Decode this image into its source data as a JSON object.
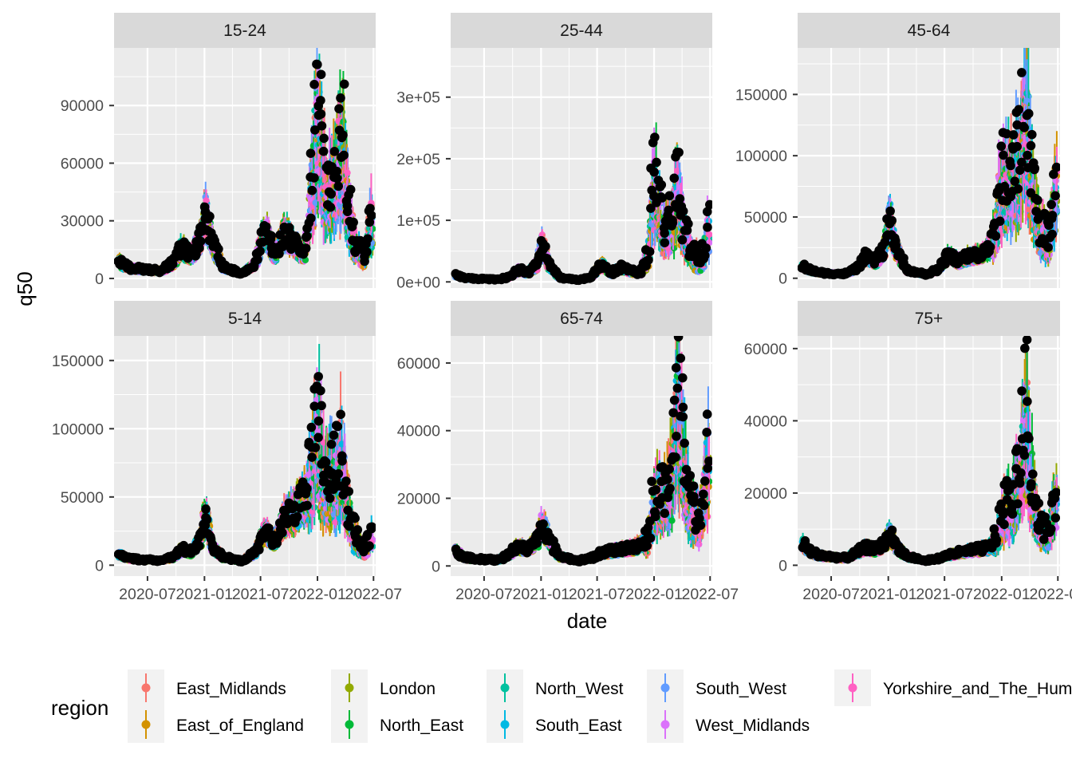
{
  "chart_data": {
    "type": "scatter",
    "layout": "faceted 2x3, free y scales, points with vertical error bars",
    "xlabel": "date",
    "ylabel": "q50",
    "x_ticks": [
      "2020-07",
      "2021-01",
      "2021-07",
      "2022-01",
      "2022-07"
    ],
    "x_range": [
      "2020-03",
      "2022-07"
    ],
    "legend": {
      "title": "region",
      "position": "bottom",
      "items": [
        {
          "name": "East_Midlands",
          "color": "#F8766D"
        },
        {
          "name": "East_of_England",
          "color": "#D39200"
        },
        {
          "name": "London",
          "color": "#93AA00"
        },
        {
          "name": "North_East",
          "color": "#00BA38"
        },
        {
          "name": "North_West",
          "color": "#00C19F"
        },
        {
          "name": "South_East",
          "color": "#00B9E3"
        },
        {
          "name": "South_West",
          "color": "#619CFF"
        },
        {
          "name": "West_Midlands",
          "color": "#DB72FB"
        },
        {
          "name": "Yorkshire_and_The_Humber",
          "color": "#FF61C3"
        }
      ]
    },
    "overlay_series_color": "#000000",
    "panels": [
      {
        "title": "15-24",
        "y_ticks": [
          "0",
          "30000",
          "60000",
          "90000"
        ],
        "y_tick_values": [
          0,
          30000,
          60000,
          90000
        ],
        "ylim": [
          -5000,
          120000
        ],
        "profile": [
          [
            "2020-04-01",
            9000
          ],
          [
            "2020-05-01",
            5500
          ],
          [
            "2020-06-15",
            5000
          ],
          [
            "2020-08-15",
            4000
          ],
          [
            "2020-09-20",
            8000
          ],
          [
            "2020-10-20",
            16000
          ],
          [
            "2020-11-20",
            12000
          ],
          [
            "2020-12-20",
            22000
          ],
          [
            "2021-01-05",
            35000
          ],
          [
            "2021-01-25",
            20000
          ],
          [
            "2021-03-01",
            6000
          ],
          [
            "2021-05-01",
            2500
          ],
          [
            "2021-06-15",
            8000
          ],
          [
            "2021-07-15",
            27000
          ],
          [
            "2021-08-15",
            12000
          ],
          [
            "2021-09-15",
            24000
          ],
          [
            "2021-10-20",
            18000
          ],
          [
            "2021-11-20",
            12000
          ],
          [
            "2021-12-15",
            45000
          ],
          [
            "2022-01-01",
            85000
          ],
          [
            "2022-01-15",
            60000
          ],
          [
            "2022-02-01",
            40000
          ],
          [
            "2022-03-01",
            48000
          ],
          [
            "2022-03-20",
            70000
          ],
          [
            "2022-04-10",
            35000
          ],
          [
            "2022-05-01",
            18000
          ],
          [
            "2022-06-01",
            9000
          ],
          [
            "2022-06-25",
            30000
          ]
        ]
      },
      {
        "title": "25-44",
        "y_ticks": [
          "0e+00",
          "1e+05",
          "2e+05",
          "3e+05"
        ],
        "y_tick_values": [
          0,
          100000,
          200000,
          300000
        ],
        "ylim": [
          -10000,
          380000
        ],
        "profile": [
          [
            "2020-04-01",
            12000
          ],
          [
            "2020-05-01",
            6000
          ],
          [
            "2020-06-15",
            5000
          ],
          [
            "2020-08-15",
            4000
          ],
          [
            "2020-09-20",
            8000
          ],
          [
            "2020-10-20",
            20000
          ],
          [
            "2020-11-20",
            15000
          ],
          [
            "2020-12-20",
            30000
          ],
          [
            "2021-01-05",
            65000
          ],
          [
            "2021-01-25",
            30000
          ],
          [
            "2021-03-01",
            7000
          ],
          [
            "2021-05-01",
            3000
          ],
          [
            "2021-06-15",
            9000
          ],
          [
            "2021-07-15",
            30000
          ],
          [
            "2021-08-15",
            14000
          ],
          [
            "2021-09-15",
            25000
          ],
          [
            "2021-10-20",
            18000
          ],
          [
            "2021-11-20",
            15000
          ],
          [
            "2021-12-15",
            50000
          ],
          [
            "2022-01-01",
            170000
          ],
          [
            "2022-01-15",
            110000
          ],
          [
            "2022-02-01",
            75000
          ],
          [
            "2022-03-01",
            90000
          ],
          [
            "2022-03-20",
            150000
          ],
          [
            "2022-04-10",
            70000
          ],
          [
            "2022-05-01",
            45000
          ],
          [
            "2022-06-01",
            30000
          ],
          [
            "2022-06-25",
            80000
          ]
        ]
      },
      {
        "title": "45-64",
        "y_ticks": [
          "0",
          "50000",
          "100000",
          "150000"
        ],
        "y_tick_values": [
          0,
          50000,
          100000,
          150000
        ],
        "ylim": [
          -8000,
          188000
        ],
        "profile": [
          [
            "2020-04-01",
            10000
          ],
          [
            "2020-05-01",
            6000
          ],
          [
            "2020-06-15",
            4000
          ],
          [
            "2020-08-15",
            3500
          ],
          [
            "2020-09-20",
            8000
          ],
          [
            "2020-10-20",
            18000
          ],
          [
            "2020-11-20",
            14000
          ],
          [
            "2020-12-20",
            25000
          ],
          [
            "2021-01-05",
            50000
          ],
          [
            "2021-01-25",
            25000
          ],
          [
            "2021-03-01",
            7000
          ],
          [
            "2021-05-01",
            3000
          ],
          [
            "2021-06-15",
            8000
          ],
          [
            "2021-07-15",
            20000
          ],
          [
            "2021-08-15",
            14000
          ],
          [
            "2021-09-15",
            18000
          ],
          [
            "2021-10-20",
            20000
          ],
          [
            "2021-11-20",
            25000
          ],
          [
            "2021-12-15",
            40000
          ],
          [
            "2022-01-01",
            75000
          ],
          [
            "2022-01-15",
            80000
          ],
          [
            "2022-02-01",
            70000
          ],
          [
            "2022-03-01",
            90000
          ],
          [
            "2022-03-20",
            130000
          ],
          [
            "2022-04-10",
            70000
          ],
          [
            "2022-05-01",
            40000
          ],
          [
            "2022-06-01",
            30000
          ],
          [
            "2022-06-25",
            70000
          ]
        ]
      },
      {
        "title": "5-14",
        "y_ticks": [
          "0",
          "50000",
          "100000",
          "150000"
        ],
        "y_tick_values": [
          0,
          50000,
          100000,
          150000
        ],
        "ylim": [
          -8000,
          168000
        ],
        "profile": [
          [
            "2020-04-01",
            8000
          ],
          [
            "2020-05-01",
            5000
          ],
          [
            "2020-06-15",
            4000
          ],
          [
            "2020-08-15",
            3500
          ],
          [
            "2020-09-20",
            6000
          ],
          [
            "2020-10-20",
            12000
          ],
          [
            "2020-11-20",
            10000
          ],
          [
            "2020-12-20",
            20000
          ],
          [
            "2021-01-05",
            40000
          ],
          [
            "2021-01-25",
            15000
          ],
          [
            "2021-03-01",
            6000
          ],
          [
            "2021-05-01",
            3000
          ],
          [
            "2021-06-15",
            10000
          ],
          [
            "2021-07-15",
            25000
          ],
          [
            "2021-08-15",
            18000
          ],
          [
            "2021-09-15",
            35000
          ],
          [
            "2021-10-20",
            40000
          ],
          [
            "2021-11-20",
            50000
          ],
          [
            "2021-12-15",
            65000
          ],
          [
            "2022-01-01",
            95000
          ],
          [
            "2022-01-15",
            70000
          ],
          [
            "2022-02-01",
            55000
          ],
          [
            "2022-03-01",
            60000
          ],
          [
            "2022-03-20",
            75000
          ],
          [
            "2022-04-10",
            40000
          ],
          [
            "2022-05-01",
            20000
          ],
          [
            "2022-06-01",
            10000
          ],
          [
            "2022-06-25",
            20000
          ]
        ]
      },
      {
        "title": "65-74",
        "y_ticks": [
          "0",
          "20000",
          "40000",
          "60000"
        ],
        "y_tick_values": [
          0,
          20000,
          40000,
          60000
        ],
        "ylim": [
          -3000,
          68000
        ],
        "profile": [
          [
            "2020-04-01",
            4500
          ],
          [
            "2020-05-01",
            2500
          ],
          [
            "2020-06-15",
            2000
          ],
          [
            "2020-08-15",
            1800
          ],
          [
            "2020-09-20",
            3500
          ],
          [
            "2020-10-20",
            6000
          ],
          [
            "2020-11-20",
            5000
          ],
          [
            "2020-12-20",
            8000
          ],
          [
            "2021-01-05",
            13000
          ],
          [
            "2021-01-25",
            8000
          ],
          [
            "2021-03-01",
            3000
          ],
          [
            "2021-05-01",
            1500
          ],
          [
            "2021-06-15",
            2500
          ],
          [
            "2021-07-15",
            4000
          ],
          [
            "2021-08-15",
            4500
          ],
          [
            "2021-09-15",
            5000
          ],
          [
            "2021-10-20",
            5500
          ],
          [
            "2021-11-20",
            6500
          ],
          [
            "2021-12-15",
            8000
          ],
          [
            "2022-01-01",
            18000
          ],
          [
            "2022-01-15",
            20000
          ],
          [
            "2022-02-01",
            18000
          ],
          [
            "2022-03-01",
            28000
          ],
          [
            "2022-03-20",
            45000
          ],
          [
            "2022-04-10",
            25000
          ],
          [
            "2022-05-01",
            15000
          ],
          [
            "2022-06-01",
            13000
          ],
          [
            "2022-06-25",
            30000
          ]
        ]
      },
      {
        "title": "75+",
        "y_ticks": [
          "0",
          "20000",
          "40000",
          "60000"
        ],
        "y_tick_values": [
          0,
          20000,
          40000,
          60000
        ],
        "ylim": [
          -3000,
          63500
        ],
        "profile": [
          [
            "2020-04-01",
            6000
          ],
          [
            "2020-05-01",
            3500
          ],
          [
            "2020-06-15",
            2500
          ],
          [
            "2020-08-15",
            2000
          ],
          [
            "2020-09-20",
            3500
          ],
          [
            "2020-10-20",
            5000
          ],
          [
            "2020-11-20",
            4500
          ],
          [
            "2020-12-20",
            6000
          ],
          [
            "2021-01-05",
            9000
          ],
          [
            "2021-01-25",
            5500
          ],
          [
            "2021-03-01",
            2500
          ],
          [
            "2021-05-01",
            1200
          ],
          [
            "2021-06-15",
            2000
          ],
          [
            "2021-07-15",
            3000
          ],
          [
            "2021-08-15",
            3500
          ],
          [
            "2021-09-15",
            4000
          ],
          [
            "2021-10-20",
            4500
          ],
          [
            "2021-11-20",
            5000
          ],
          [
            "2021-12-15",
            7000
          ],
          [
            "2022-01-01",
            13000
          ],
          [
            "2022-01-15",
            15000
          ],
          [
            "2022-02-01",
            15000
          ],
          [
            "2022-03-01",
            25000
          ],
          [
            "2022-03-20",
            40000
          ],
          [
            "2022-04-10",
            20000
          ],
          [
            "2022-05-01",
            10000
          ],
          [
            "2022-06-01",
            8000
          ],
          [
            "2022-06-25",
            18000
          ]
        ]
      }
    ]
  }
}
